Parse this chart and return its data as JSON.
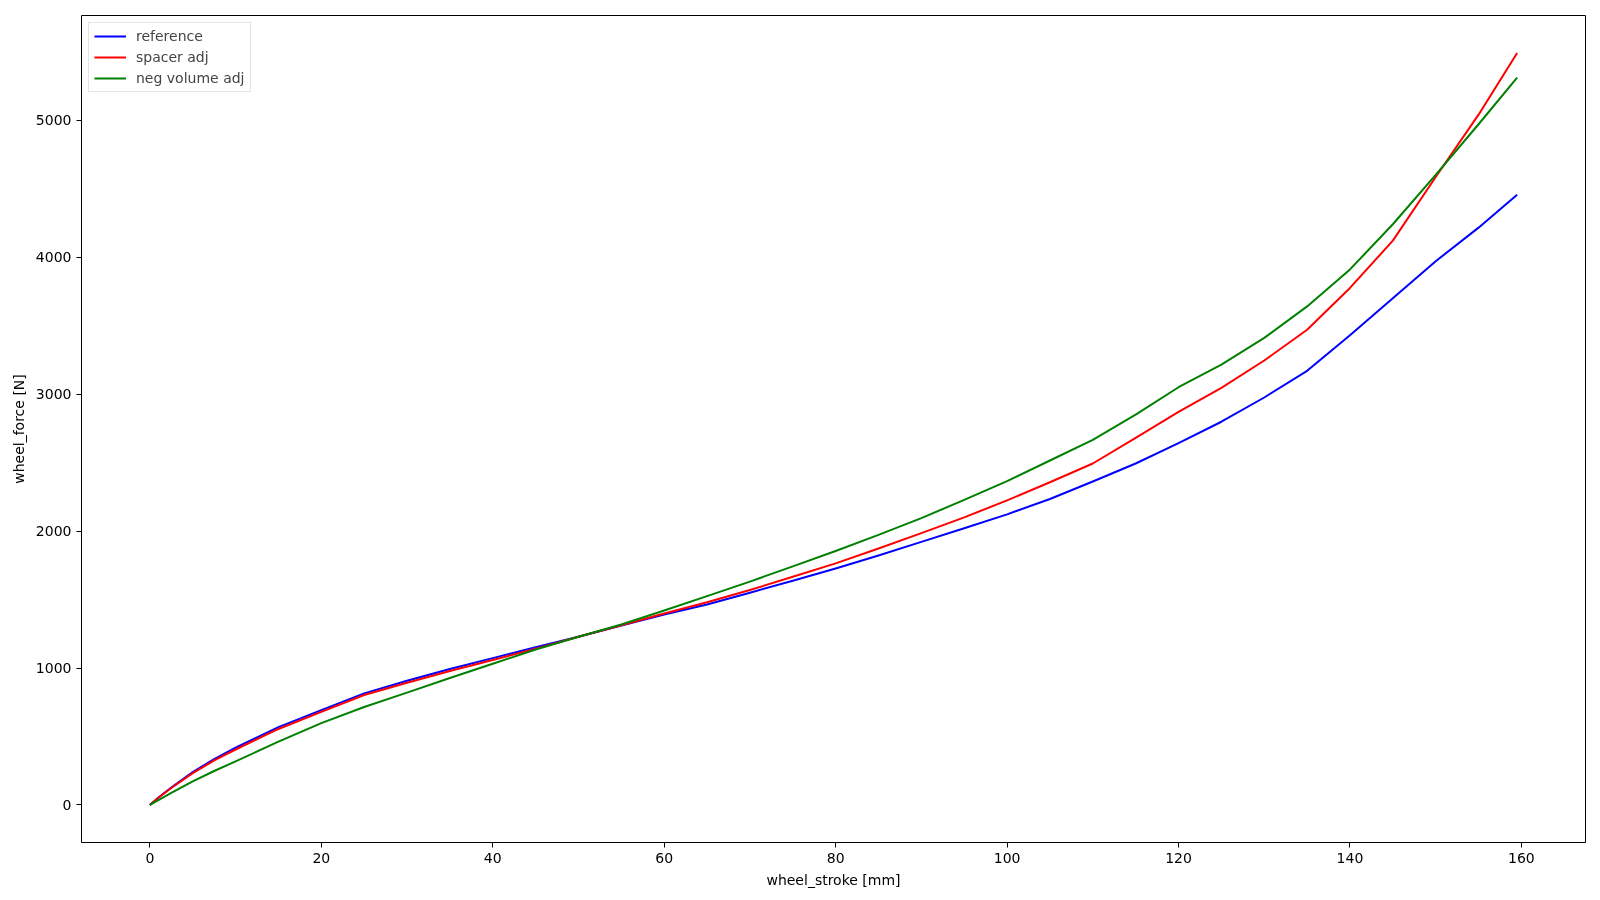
{
  "chart_data": {
    "type": "line",
    "xlabel": "wheel_stroke [mm]",
    "ylabel": "wheel_force [N]",
    "xlim": [
      -7.975,
      167.475
    ],
    "ylim": [
      -274,
      5764
    ],
    "xticks": [
      0,
      20,
      40,
      60,
      80,
      100,
      120,
      140,
      160
    ],
    "yticks": [
      0,
      1000,
      2000,
      3000,
      4000,
      5000
    ],
    "grid": false,
    "legend": "top left",
    "line_style": "solid",
    "x": [
      0,
      1,
      2.5,
      5,
      7.5,
      10,
      15,
      20,
      25,
      30,
      35,
      40,
      45,
      50,
      55,
      60,
      65,
      70,
      75,
      80,
      85,
      90,
      95,
      100,
      105,
      110,
      115,
      120,
      125,
      130,
      135,
      140,
      145,
      150,
      155,
      159.5
    ],
    "series": [
      {
        "name": "reference",
        "color": "#0000ff",
        "values": [
          0,
          55,
          128,
          240,
          335,
          418,
          568,
          692,
          815,
          907,
          993,
          1072,
          1152,
          1228,
          1310,
          1390,
          1464,
          1550,
          1637,
          1726,
          1822,
          1921,
          2020,
          2122,
          2234,
          2362,
          2493,
          2642,
          2798,
          2975,
          3170,
          3430,
          3700,
          3970,
          4215,
          4455
        ]
      },
      {
        "name": "spacer adj",
        "color": "#ff0000",
        "values": [
          0,
          53,
          124,
          232,
          325,
          405,
          555,
          680,
          803,
          892,
          978,
          1058,
          1140,
          1228,
          1312,
          1398,
          1480,
          1569,
          1666,
          1764,
          1873,
          1985,
          2100,
          2224,
          2356,
          2493,
          2680,
          2870,
          3045,
          3245,
          3470,
          3775,
          4120,
          4585,
          5040,
          5490
        ]
      },
      {
        "name": "neg volume adj",
        "color": "#008000",
        "values": [
          0,
          36,
          88,
          172,
          248,
          318,
          462,
          598,
          715,
          820,
          927,
          1031,
          1135,
          1228,
          1318,
          1420,
          1525,
          1631,
          1742,
          1854,
          1972,
          2094,
          2228,
          2365,
          2515,
          2665,
          2850,
          3050,
          3215,
          3410,
          3640,
          3910,
          4240,
          4600,
          4970,
          5310
        ]
      }
    ]
  }
}
